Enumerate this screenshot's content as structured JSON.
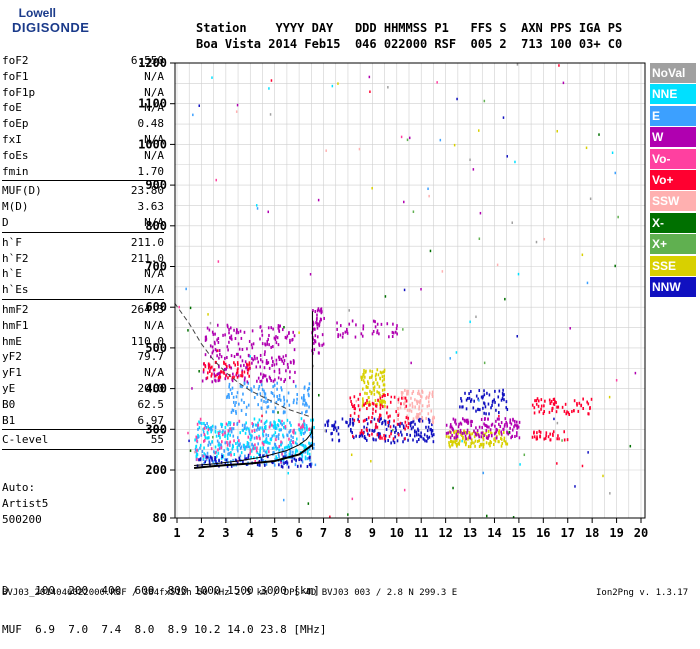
{
  "logo": {
    "line1": "Lowell",
    "line2": "DIGISONDE"
  },
  "header": {
    "row1": "Station    YYYY DAY   DDD HHMMSS P1   FFS S  AXN PPS IGA PS",
    "row2": "Boa Vista 2014 Feb15  046 022000 RSF  005 2  713 100 03+ C0"
  },
  "params_group1": [
    {
      "label": "foF2",
      "value": "6.550"
    },
    {
      "label": "foF1",
      "value": "N/A"
    },
    {
      "label": "foF1p",
      "value": "N/A"
    },
    {
      "label": "foE",
      "value": "N/A"
    },
    {
      "label": "foEp",
      "value": "0.48"
    },
    {
      "label": "fxI",
      "value": "N/A"
    },
    {
      "label": "foEs",
      "value": "N/A"
    },
    {
      "label": "fmin",
      "value": "1.70"
    }
  ],
  "params_group2": [
    {
      "label": "MUF(D)",
      "value": "23.80"
    },
    {
      "label": "M(D)",
      "value": "3.63"
    },
    {
      "label": "D",
      "value": "N/A"
    }
  ],
  "params_group3": [
    {
      "label": "h`F",
      "value": "211.0"
    },
    {
      "label": "h`F2",
      "value": "211.0"
    },
    {
      "label": "h`E",
      "value": "N/A"
    },
    {
      "label": "h`Es",
      "value": "N/A"
    }
  ],
  "params_group4": [
    {
      "label": "hmF2",
      "value": "264.3"
    },
    {
      "label": "hmF1",
      "value": "N/A"
    },
    {
      "label": "hmE",
      "value": "110.0"
    },
    {
      "label": "yF2",
      "value": "79.7"
    },
    {
      "label": "yF1",
      "value": "N/A"
    },
    {
      "label": "yE",
      "value": "20.0"
    },
    {
      "label": "B0",
      "value": "62.5"
    },
    {
      "label": "B1",
      "value": "6.97"
    }
  ],
  "params_group5": [
    {
      "label": "C-level",
      "value": "55"
    }
  ],
  "auto": {
    "line1": "Auto:",
    "line2": "Artist5",
    "line3": "500200"
  },
  "legend": [
    {
      "label": "NoVal",
      "color": "#a0a0a0"
    },
    {
      "label": "NNE",
      "color": "#00e0ff"
    },
    {
      "label": "E",
      "color": "#3ca0ff"
    },
    {
      "label": "W",
      "color": "#b000b0"
    },
    {
      "label": "Vo-",
      "color": "#ff40a0"
    },
    {
      "label": "Vo+",
      "color": "#ff0030"
    },
    {
      "label": "SSW",
      "color": "#ffb0b0"
    },
    {
      "label": "X-",
      "color": "#007000"
    },
    {
      "label": "X+",
      "color": "#60b050"
    },
    {
      "label": "SSE",
      "color": "#d8d000"
    },
    {
      "label": "NNW",
      "color": "#1010c0"
    }
  ],
  "footer": {
    "d_row": "D    100  200  400  600  800 1000 1500 3000 [km]",
    "muf_row": "MUF  6.9  7.0  7.4  8.0  8.9 10.2 14.0 23.8 [MHz]",
    "status": "BVJ03_2014046022000.RSF / 384fx512h 50 kHz 2.5 km / DPS-4D BVJ03 003 / 2.8 N 299.3 E",
    "version": "Ion2Png v. 1.3.17"
  },
  "chart_data": {
    "type": "scatter",
    "x_ticks": [
      1,
      2,
      3,
      4,
      5,
      6,
      7,
      8,
      9,
      10,
      11,
      12,
      13,
      14,
      15,
      16,
      17,
      18,
      19,
      20
    ],
    "y_ticks": [
      80,
      200,
      300,
      400,
      500,
      600,
      700,
      800,
      900,
      1000,
      1100,
      1200
    ],
    "xlim": [
      0.8,
      20.5
    ],
    "ylim": [
      80,
      1210
    ],
    "grid": true,
    "clusters": [
      {
        "trace": "E",
        "fmin": 1.7,
        "fmax": 6.6,
        "hmin": 215,
        "hmax": 320,
        "count": 260
      },
      {
        "trace": "NNE",
        "fmin": 1.7,
        "fmax": 6.6,
        "hmin": 230,
        "hmax": 330,
        "count": 200
      },
      {
        "trace": "E",
        "fmin": 3.0,
        "fmax": 6.5,
        "hmin": 340,
        "hmax": 420,
        "count": 120
      },
      {
        "trace": "W",
        "fmin": 2.0,
        "fmax": 5.8,
        "hmin": 420,
        "hmax": 560,
        "count": 230
      },
      {
        "trace": "Vo+",
        "fmin": 2.0,
        "fmax": 4.0,
        "hmin": 430,
        "hmax": 470,
        "count": 60
      },
      {
        "trace": "Vo-",
        "fmin": 1.7,
        "fmax": 6.5,
        "hmin": 220,
        "hmax": 330,
        "count": 80
      },
      {
        "trace": "NNW",
        "fmin": 1.8,
        "fmax": 6.5,
        "hmin": 210,
        "hmax": 240,
        "count": 80
      },
      {
        "trace": "W",
        "fmin": 6.5,
        "fmax": 7.0,
        "hmin": 490,
        "hmax": 600,
        "count": 50
      },
      {
        "trace": "SSE",
        "fmin": 8.5,
        "fmax": 9.5,
        "hmin": 360,
        "hmax": 450,
        "count": 90
      },
      {
        "trace": "NNW",
        "fmin": 7.0,
        "fmax": 11.5,
        "hmin": 270,
        "hmax": 330,
        "count": 160
      },
      {
        "trace": "SSW",
        "fmin": 10.0,
        "fmax": 11.5,
        "hmin": 320,
        "hmax": 400,
        "count": 90
      },
      {
        "trace": "Vo+",
        "fmin": 8.0,
        "fmax": 10.5,
        "hmin": 280,
        "hmax": 390,
        "count": 100
      },
      {
        "trace": "SSE",
        "fmin": 12.0,
        "fmax": 14.5,
        "hmin": 260,
        "hmax": 300,
        "count": 120
      },
      {
        "trace": "W",
        "fmin": 12.0,
        "fmax": 15.0,
        "hmin": 280,
        "hmax": 330,
        "count": 140
      },
      {
        "trace": "NNW",
        "fmin": 12.5,
        "fmax": 14.5,
        "hmin": 340,
        "hmax": 400,
        "count": 60
      },
      {
        "trace": "Vo+",
        "fmin": 15.5,
        "fmax": 18.0,
        "hmin": 340,
        "hmax": 380,
        "count": 60
      },
      {
        "trace": "Vo+",
        "fmin": 15.5,
        "fmax": 17.0,
        "hmin": 275,
        "hmax": 300,
        "count": 30
      },
      {
        "trace": "W",
        "fmin": 7.5,
        "fmax": 10.0,
        "hmin": 530,
        "hmax": 570,
        "count": 40
      }
    ],
    "scatter_sparse": {
      "fmin": 1,
      "fmax": 20,
      "hmin": 80,
      "hmax": 1200,
      "count": 140
    },
    "profile_curve": {
      "f": [
        1.7,
        2.5,
        3.5,
        4.5,
        5.5,
        6.0,
        6.3,
        6.5,
        6.55
      ],
      "h": [
        211,
        215,
        222,
        232,
        248,
        262,
        275,
        290,
        310
      ]
    },
    "virtual_height_curve": {
      "f": [
        1.7,
        2.2,
        3.0,
        4.0,
        5.0,
        6.0,
        6.55
      ],
      "h": [
        205,
        208,
        212,
        216,
        222,
        238,
        262
      ]
    },
    "dashed_curve": {
      "f": [
        0.9,
        1.5,
        2.0,
        2.5,
        3.0,
        3.5,
        4.0,
        4.5,
        5.0,
        5.5,
        6.0,
        6.5
      ],
      "h": [
        610,
        560,
        510,
        470,
        440,
        415,
        395,
        380,
        365,
        350,
        340,
        330
      ]
    }
  }
}
